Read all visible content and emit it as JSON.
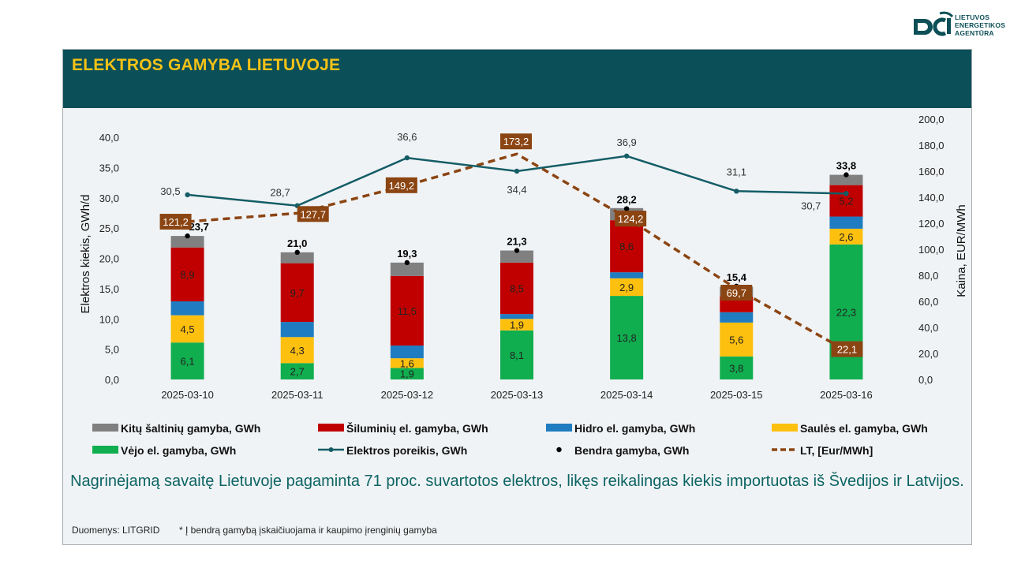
{
  "header": {
    "title": "ELEKTROS GAMYBA LIETUVOJE"
  },
  "logo": {
    "lines": [
      "LIETUVOS",
      "ENERGETIKOS",
      "AGENTŪRA"
    ]
  },
  "summary": "Nagrinėjamą savaitę Lietuvoje pagaminta 71 proc. suvartotos elektros, likęs reikalingas kiekis importuotas iš Švedijos ir Latvijos.",
  "footer": {
    "source": "Duomenys: LITGRID",
    "footnote": "* Į bendrą gamybą įskaičiuojama ir kaupimo įrenginių gamyba"
  },
  "colors": {
    "wind": "#10ae4f",
    "solar": "#fec00f",
    "hydro": "#1f7cc1",
    "thermal": "#c00000",
    "other": "#808080",
    "demand": "#145d67",
    "price": "#8b4513",
    "header": "#0b4f58"
  },
  "chart_data": {
    "type": "bar",
    "stacked": true,
    "categories": [
      "2025-03-10",
      "2025-03-11",
      "2025-03-12",
      "2025-03-13",
      "2025-03-14",
      "2025-03-15",
      "2025-03-16"
    ],
    "ylabel": "Elektros kiekis, GWh/d",
    "ylim": [
      0,
      40
    ],
    "yticks": [
      "0,0",
      "5,0",
      "10,0",
      "15,0",
      "20,0",
      "25,0",
      "30,0",
      "35,0",
      "40,0"
    ],
    "y2label": "Kaina, EUR/MWh",
    "y2lim": [
      0,
      200
    ],
    "y2ticks": [
      "0,0",
      "20,0",
      "40,0",
      "60,0",
      "80,0",
      "100,0",
      "120,0",
      "140,0",
      "160,0",
      "180,0",
      "200,0"
    ],
    "series": [
      {
        "key": "wind",
        "name": "Vėjo el. gamyba, GWh",
        "values": [
          6.1,
          2.7,
          1.9,
          8.1,
          13.8,
          3.8,
          22.3
        ],
        "labels": [
          "6,1",
          "2,7",
          "1,9",
          "8,1",
          "13,8",
          "3,8",
          "22,3"
        ]
      },
      {
        "key": "solar",
        "name": "Saulės el. gamyba, GWh",
        "values": [
          4.5,
          4.3,
          1.6,
          1.9,
          2.9,
          5.6,
          2.6
        ],
        "labels": [
          "4,5",
          "4,3",
          "1,6",
          "1,9",
          "2,9",
          "5,6",
          "2,6"
        ]
      },
      {
        "key": "hydro",
        "name": "Hidro el. gamyba, GWh",
        "values": [
          2.3,
          2.5,
          2.1,
          0.8,
          1.0,
          1.7,
          2.0
        ],
        "labels": [
          "",
          "",
          "",
          "",
          "",
          "",
          ""
        ]
      },
      {
        "key": "thermal",
        "name": "Šiluminių el. gamyba, GWh",
        "values": [
          8.9,
          9.7,
          11.5,
          8.5,
          8.6,
          2.6,
          5.2
        ],
        "labels": [
          "8,9",
          "9,7",
          "11,5",
          "8,5",
          "8,6",
          "",
          "5,2"
        ]
      },
      {
        "key": "other",
        "name": "Kitų šaltinių gamyba,  GWh",
        "values": [
          1.9,
          1.8,
          2.2,
          2.0,
          2.0,
          1.6,
          1.7
        ],
        "labels": [
          "",
          "",
          "",
          "",
          "",
          "",
          ""
        ]
      }
    ],
    "total": {
      "name": "Bendra gamyba, GWh",
      "values": [
        23.7,
        21.0,
        19.3,
        21.3,
        28.2,
        15.4,
        33.8
      ],
      "labels": [
        "23,7",
        "21,0",
        "19,3",
        "21,3",
        "28,2",
        "15,4",
        "33,8"
      ]
    },
    "demand": {
      "name": "Elektros poreikis, GWh",
      "values": [
        30.5,
        28.7,
        36.6,
        34.4,
        36.9,
        31.1,
        30.7
      ],
      "labels": [
        "30,5",
        "28,7",
        "36,6",
        "34,4",
        "36,9",
        "31,1",
        "30,7"
      ]
    },
    "price": {
      "name": "LT, [Eur/MWh]",
      "values": [
        121.2,
        127.7,
        149.2,
        173.2,
        124.2,
        69.7,
        22.1
      ],
      "labels": [
        "121,2",
        "127,7",
        "149,2",
        "173,2",
        "124,2",
        "69,7",
        "22,1"
      ]
    },
    "legend": [
      [
        "Kitų šaltinių gamyba,  GWh",
        "Šiluminių el. gamyba, GWh",
        "Hidro el. gamyba, GWh",
        "Saulės el. gamyba, GWh"
      ],
      [
        "Vėjo el. gamyba, GWh",
        "Elektros poreikis, GWh",
        "Bendra gamyba, GWh",
        "LT, [Eur/MWh]"
      ]
    ]
  }
}
